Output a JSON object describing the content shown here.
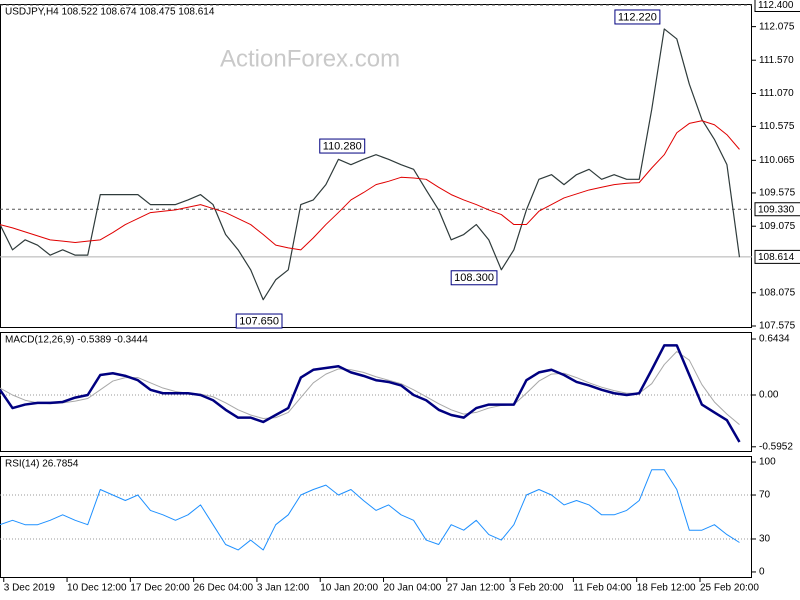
{
  "chart_data": [
    {
      "type": "line",
      "title": "USDJPY,H4 108.522 108.674 108.475 108.614",
      "watermark": "ActionForex.com",
      "xlim": [
        0,
        120
      ],
      "ylim": [
        107.545,
        112.415
      ],
      "yticks": [
        112.075,
        {
          "value": 111.57,
          "label": "111.570"
        },
        {
          "value": 111.07,
          "label": "111.070"
        },
        110.575,
        110.065,
        109.575,
        109.075,
        108.075,
        107.575
      ],
      "x": [
        0,
        2,
        4,
        6,
        8,
        10,
        12,
        14,
        16,
        18,
        20,
        22,
        24,
        26,
        28,
        30,
        32,
        34,
        36,
        38,
        40,
        42,
        44,
        46,
        48,
        50,
        52,
        54,
        56,
        58,
        60,
        62,
        64,
        66,
        68,
        70,
        72,
        74,
        76,
        78,
        80,
        82,
        84,
        86,
        88,
        90,
        92,
        94,
        96,
        98,
        100,
        102,
        104,
        106,
        108,
        110,
        112,
        114,
        116,
        118
      ],
      "series": [
        {
          "name": "USDJPY",
          "color": "#2f3b3b",
          "width": 1.2,
          "values": [
            109.1,
            108.72,
            108.87,
            108.79,
            108.64,
            108.72,
            108.64,
            108.64,
            109.55,
            109.55,
            109.55,
            109.55,
            109.4,
            109.4,
            109.4,
            109.47,
            109.55,
            109.4,
            108.95,
            108.72,
            108.42,
            107.97,
            108.27,
            108.42,
            109.4,
            109.47,
            109.7,
            110.08,
            110.0,
            110.08,
            110.15,
            110.08,
            110.0,
            109.93,
            109.62,
            109.32,
            108.87,
            108.95,
            109.1,
            108.87,
            108.42,
            108.72,
            109.32,
            109.78,
            109.85,
            109.7,
            109.85,
            109.93,
            109.78,
            109.85,
            109.78,
            109.78,
            110.83,
            112.04,
            111.89,
            111.21,
            110.68,
            110.38,
            110.0,
            108.61
          ]
        },
        {
          "name": "MA",
          "color": "#e00000",
          "width": 1,
          "values": [
            109.1,
            109.05,
            108.99,
            108.93,
            108.87,
            108.85,
            108.83,
            108.85,
            108.87,
            108.98,
            109.1,
            109.19,
            109.28,
            109.3,
            109.32,
            109.36,
            109.4,
            109.34,
            109.28,
            109.19,
            109.1,
            108.95,
            108.79,
            108.75,
            108.72,
            108.9,
            109.1,
            109.28,
            109.47,
            109.58,
            109.7,
            109.75,
            109.81,
            109.8,
            109.78,
            109.66,
            109.55,
            109.47,
            109.4,
            109.32,
            109.25,
            109.1,
            109.1,
            109.3,
            109.4,
            109.5,
            109.56,
            109.62,
            109.66,
            109.7,
            109.72,
            109.73,
            109.95,
            110.15,
            110.48,
            110.62,
            110.66,
            110.6,
            110.45,
            110.23
          ]
        }
      ],
      "hlines": [
        {
          "value": 112.4,
          "label": "112.400",
          "style": "dashed",
          "color": "#555555"
        },
        {
          "value": 109.33,
          "label": "109.330",
          "style": "dashed",
          "color": "#555555"
        },
        {
          "value": 108.614,
          "label": "108.614",
          "style": "solid",
          "color": "#b0b0b0"
        }
      ],
      "annotations": [
        {
          "x": 105.3,
          "value": 112.22,
          "label": "112.220"
        },
        {
          "x": 58.2,
          "value": 110.28,
          "label": "110.280"
        },
        {
          "x": 79.3,
          "value": 108.3,
          "label": "108.300"
        },
        {
          "x": 45,
          "value": 107.65,
          "label": "107.650"
        }
      ]
    },
    {
      "type": "line",
      "title": "MACD(12,26,9) -0.5389 -0.3444",
      "xlim": [
        0,
        120
      ],
      "ylim": [
        -0.655,
        0.724
      ],
      "yticks": [
        0.6434,
        {
          "value": 0,
          "label": "0.00"
        },
        -0.5952
      ],
      "levels": [
        0
      ],
      "x": [
        0,
        2,
        4,
        6,
        8,
        10,
        12,
        14,
        16,
        18,
        20,
        22,
        24,
        26,
        28,
        30,
        32,
        34,
        36,
        38,
        40,
        42,
        44,
        46,
        48,
        50,
        52,
        54,
        56,
        58,
        60,
        62,
        64,
        66,
        68,
        70,
        72,
        74,
        76,
        78,
        80,
        82,
        84,
        86,
        88,
        90,
        92,
        94,
        96,
        98,
        100,
        102,
        104,
        106,
        108,
        110,
        112,
        114,
        116,
        118
      ],
      "series": [
        {
          "name": "Signal",
          "color": "#a8a8a8",
          "width": 1,
          "values": [
            0.08,
            0.0,
            -0.06,
            -0.09,
            -0.1,
            -0.09,
            -0.07,
            -0.04,
            0.06,
            0.16,
            0.2,
            0.2,
            0.14,
            0.08,
            0.04,
            0.02,
            0.01,
            -0.02,
            -0.09,
            -0.17,
            -0.23,
            -0.27,
            -0.26,
            -0.2,
            -0.03,
            0.14,
            0.24,
            0.3,
            0.29,
            0.26,
            0.21,
            0.17,
            0.13,
            0.06,
            -0.02,
            -0.1,
            -0.17,
            -0.22,
            -0.2,
            -0.15,
            -0.12,
            -0.11,
            0.02,
            0.16,
            0.24,
            0.25,
            0.2,
            0.14,
            0.09,
            0.05,
            0.02,
            0.02,
            0.13,
            0.35,
            0.5,
            0.4,
            0.12,
            -0.08,
            -0.22,
            -0.34
          ]
        },
        {
          "name": "MACD",
          "color": "#000080",
          "width": 2.5,
          "values": [
            0.06,
            -0.15,
            -0.11,
            -0.09,
            -0.09,
            -0.08,
            -0.03,
            0,
            0.23,
            0.25,
            0.22,
            0.17,
            0.06,
            0.02,
            0.02,
            0.02,
            0,
            -0.06,
            -0.17,
            -0.26,
            -0.26,
            -0.31,
            -0.23,
            -0.15,
            0.2,
            0.29,
            0.31,
            0.33,
            0.26,
            0.22,
            0.17,
            0.15,
            0.11,
            0,
            -0.06,
            -0.17,
            -0.23,
            -0.26,
            -0.15,
            -0.11,
            -0.11,
            -0.11,
            0.17,
            0.26,
            0.29,
            0.23,
            0.15,
            0.11,
            0.06,
            0.02,
            0,
            0.02,
            0.29,
            0.57,
            0.57,
            0.23,
            -0.11,
            -0.2,
            -0.29,
            -0.54
          ]
        }
      ]
    },
    {
      "type": "line",
      "title": "RSI(14) 26.7854",
      "xlim": [
        0,
        120
      ],
      "ylim": [
        -5.5,
        105.5
      ],
      "yticks": [
        100,
        70,
        30,
        0
      ],
      "levels": [
        70,
        30
      ],
      "xticks": [
        {
          "value": 0.6,
          "label": "3 Dec 2019"
        },
        {
          "value": 10.7,
          "label": "10 Dec 12:00"
        },
        {
          "value": 20.8,
          "label": "17 Dec 20:00"
        },
        {
          "value": 30.9,
          "label": "26 Dec 04:00"
        },
        {
          "value": 41,
          "label": "3 Jan 12:00"
        },
        {
          "value": 51.1,
          "label": "10 Jan 20:00"
        },
        {
          "value": 61.2,
          "label": "20 Jan 04:00"
        },
        {
          "value": 71.3,
          "label": "27 Jan 12:00"
        },
        {
          "value": 81.4,
          "label": "3 Feb 20:00"
        },
        {
          "value": 91.5,
          "label": "11 Feb 04:00"
        },
        {
          "value": 101.6,
          "label": "18 Feb 12:00"
        },
        {
          "value": 111.7,
          "label": "25 Feb 20:00"
        }
      ],
      "x": [
        0,
        2,
        4,
        6,
        8,
        10,
        12,
        14,
        16,
        18,
        20,
        22,
        24,
        26,
        28,
        30,
        32,
        34,
        36,
        38,
        40,
        42,
        44,
        46,
        48,
        50,
        52,
        54,
        56,
        58,
        60,
        62,
        64,
        66,
        68,
        70,
        72,
        74,
        76,
        78,
        80,
        82,
        84,
        86,
        88,
        90,
        92,
        94,
        96,
        98,
        100,
        102,
        104,
        106,
        108,
        110,
        112,
        114,
        116,
        118
      ],
      "series": [
        {
          "name": "RSI",
          "color": "#1e90ff",
          "width": 1,
          "values": [
            43,
            47,
            43,
            43,
            47,
            52,
            47,
            43,
            75,
            70,
            65,
            70,
            56,
            52,
            47,
            52,
            61,
            43,
            25,
            20,
            29,
            20,
            43,
            52,
            70,
            75,
            79,
            70,
            75,
            65,
            56,
            61,
            52,
            47,
            29,
            25,
            43,
            38,
            47,
            34,
            29,
            43,
            70,
            75,
            70,
            61,
            65,
            61,
            52,
            52,
            56,
            65,
            93,
            93,
            75,
            38,
            38,
            43,
            34,
            26.8
          ]
        }
      ]
    }
  ]
}
